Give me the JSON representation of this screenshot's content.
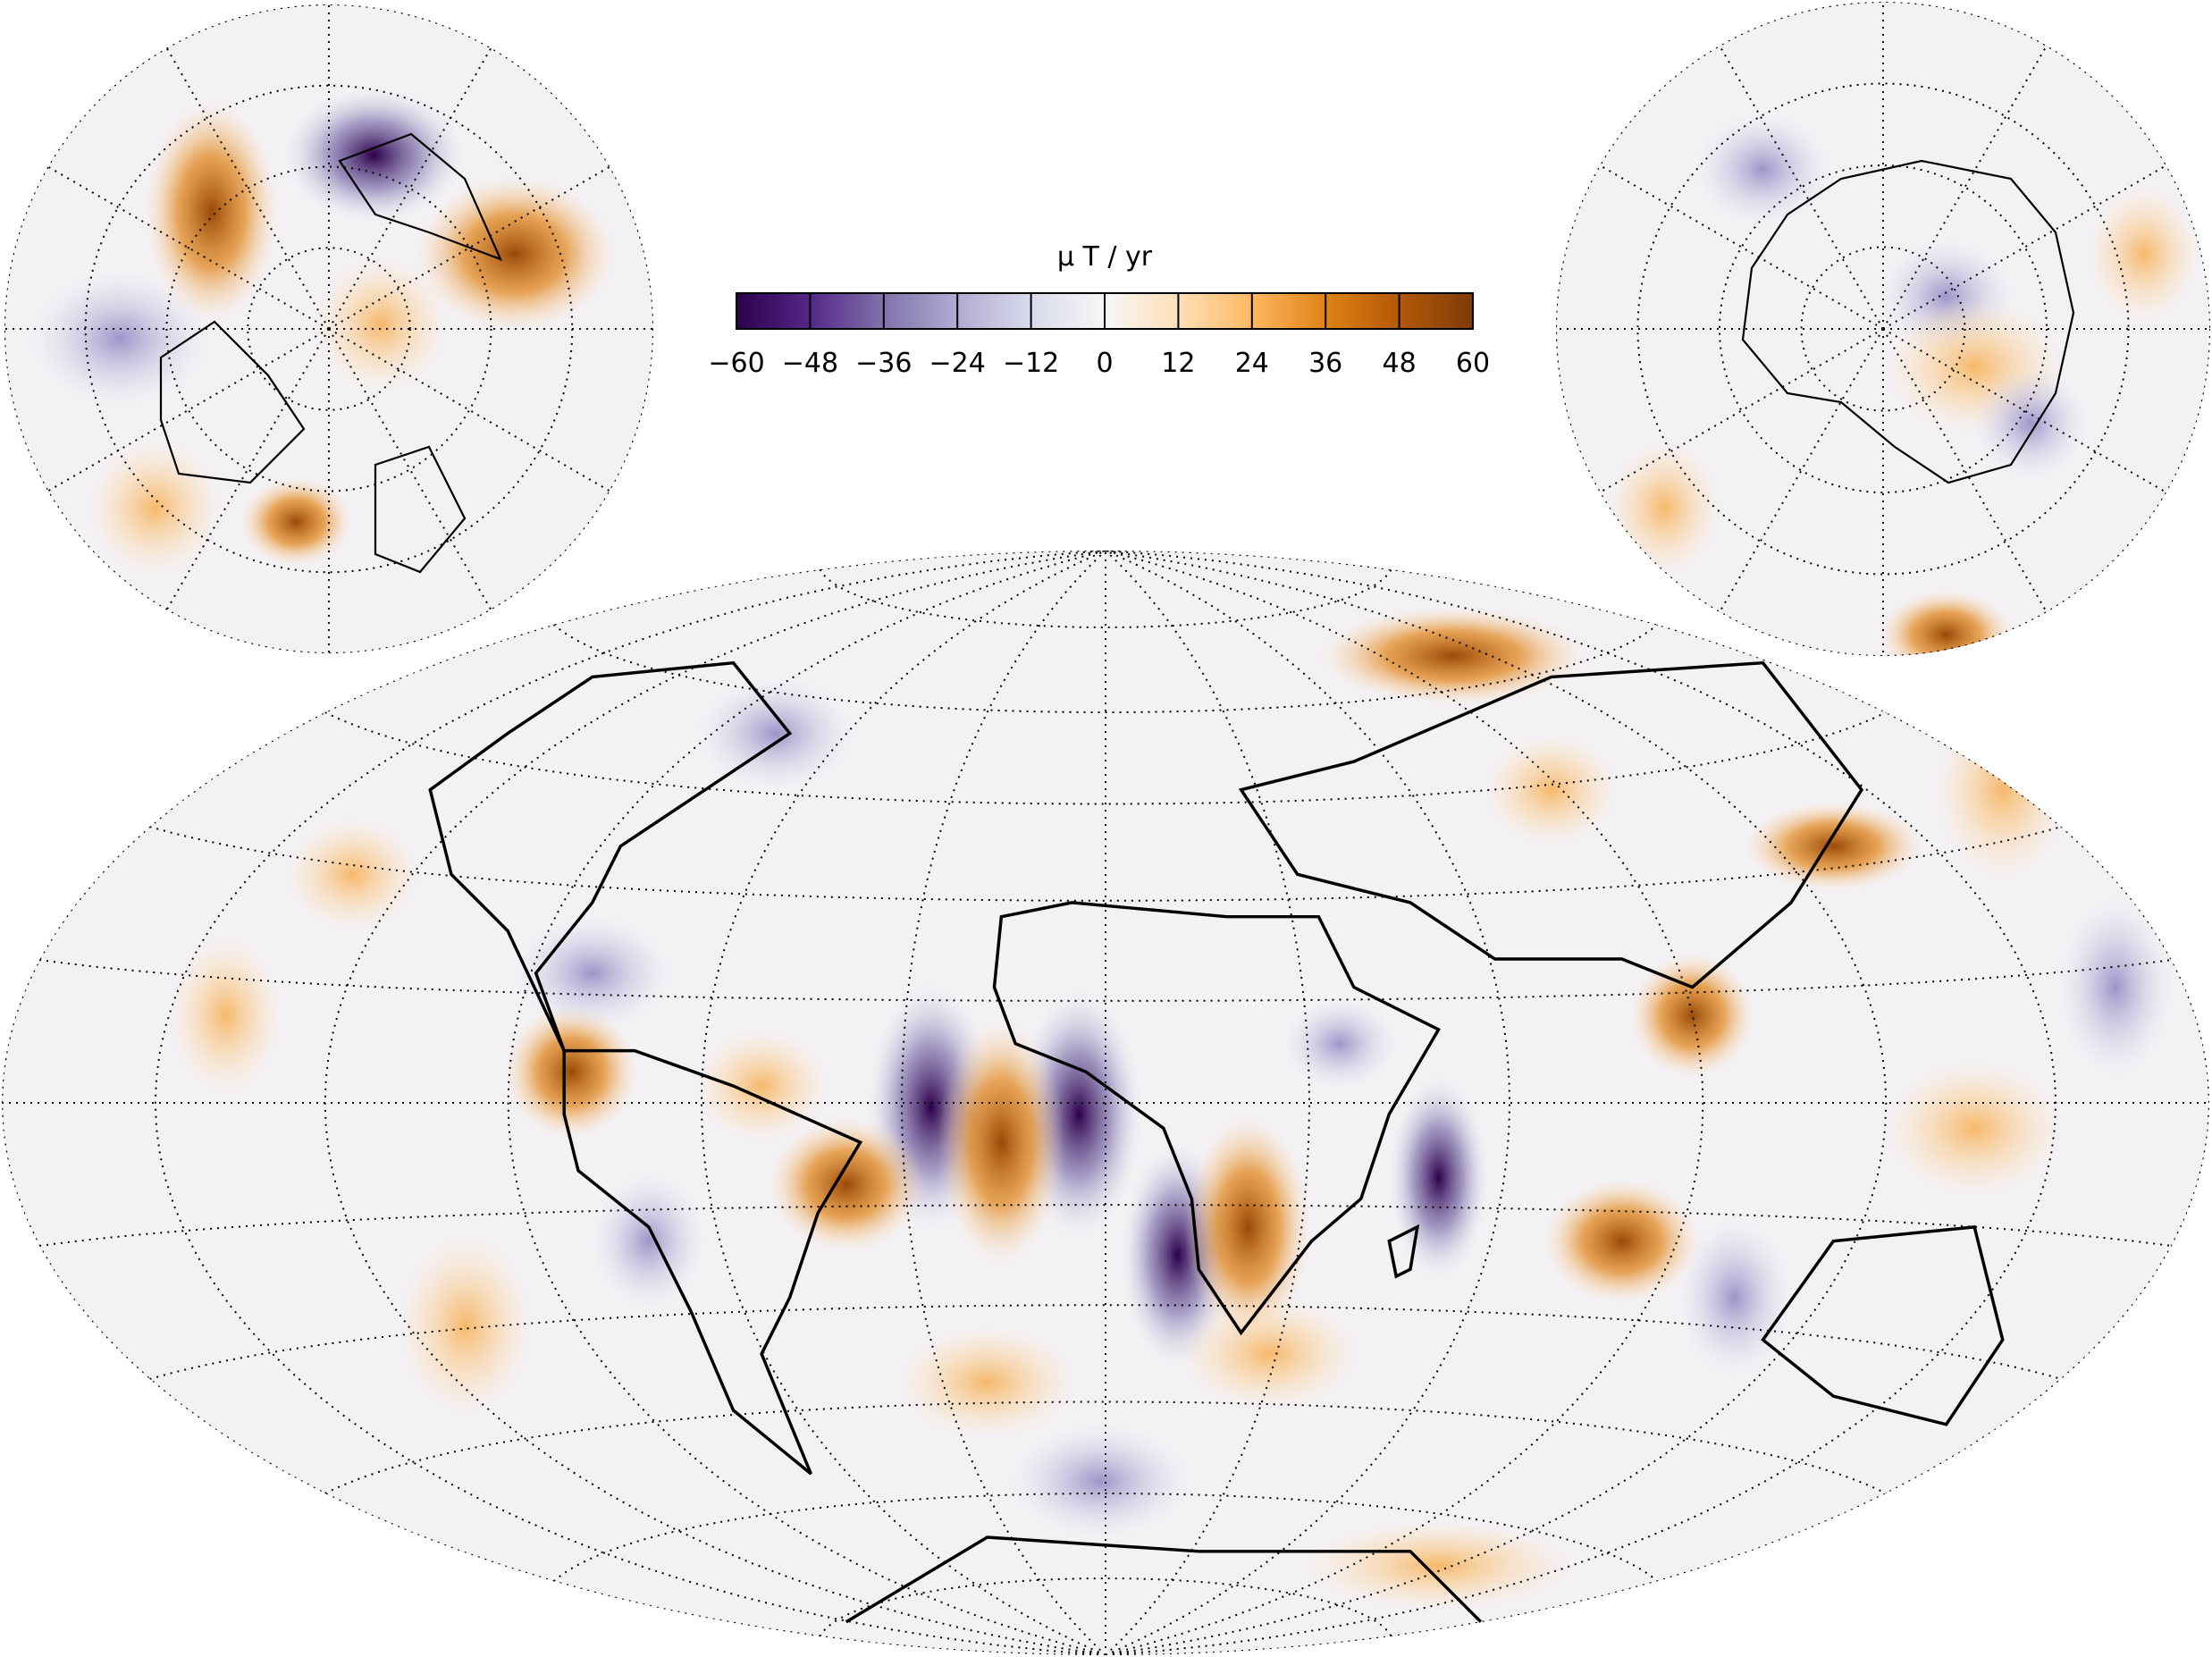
{
  "colorbar": {
    "label": "μ T / yr",
    "lim": [
      -60,
      60
    ],
    "ticks": [
      {
        "value": -60,
        "label": "−60"
      },
      {
        "value": -48,
        "label": "−48"
      },
      {
        "value": -36,
        "label": "−36"
      },
      {
        "value": -24,
        "label": "−24"
      },
      {
        "value": -12,
        "label": "−12"
      },
      0,
      12,
      24,
      36,
      48,
      60
    ],
    "colors": [
      "#2d004b",
      "#542788",
      "#8073ac",
      "#b2abd2",
      "#d8daeb",
      "#f7f7f7",
      "#fee0b6",
      "#fdb863",
      "#e08214",
      "#b35806",
      "#7f3b08"
    ]
  }
}
